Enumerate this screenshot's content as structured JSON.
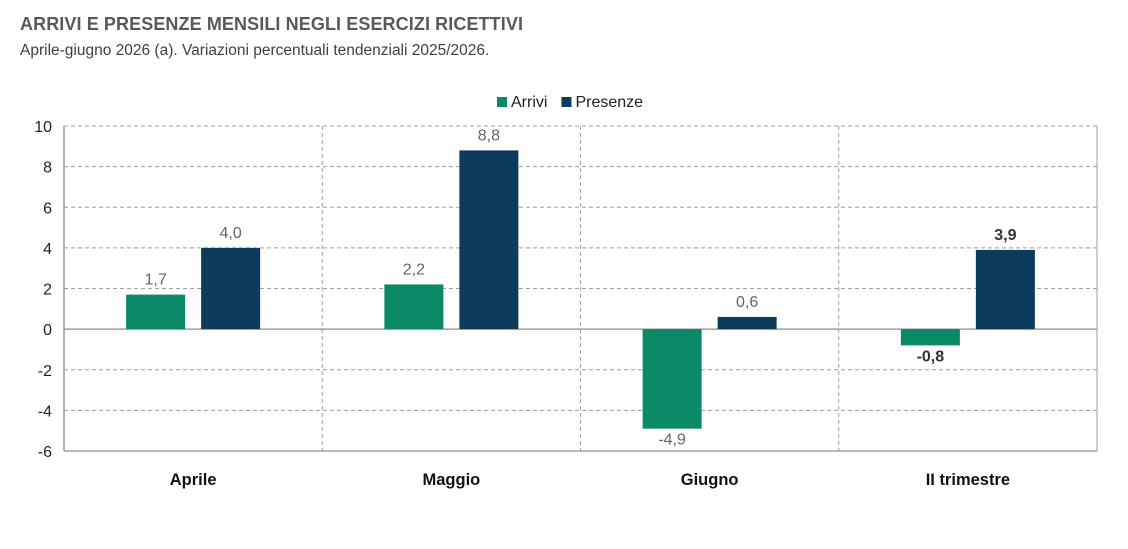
{
  "title": "ARRIVI E PRESENZE MENSILI NEGLI ESERCIZI RICETTIVI",
  "subtitle": "Aprile-giugno 2026 (a). Variazioni percentuali tendenziali 2025/2026.",
  "colors": {
    "arrivi": "#0b8a67",
    "presenze": "#0d3b5c",
    "grid": "#9f9f9f"
  },
  "chart_data": {
    "type": "bar",
    "categories": [
      "Aprile",
      "Maggio",
      "Giugno",
      "II trimestre"
    ],
    "series": [
      {
        "name": "Arrivi",
        "values": [
          1.7,
          2.2,
          -4.9,
          -0.8
        ],
        "labels": [
          "1,7",
          "2,2",
          "-4,9",
          "-0,8"
        ]
      },
      {
        "name": "Presenze",
        "values": [
          4.0,
          8.8,
          0.6,
          3.9
        ],
        "labels": [
          "4,0",
          "8,8",
          "0,6",
          "3,9"
        ]
      }
    ],
    "ylim": [
      -6,
      10
    ],
    "yticks": [
      "-6",
      "-4",
      "-2",
      "0",
      "2",
      "4",
      "6",
      "8",
      "10"
    ],
    "grid": true,
    "legend_position": "top-center",
    "bold_labels_category": "II trimestre",
    "xlabel": "",
    "ylabel": ""
  }
}
